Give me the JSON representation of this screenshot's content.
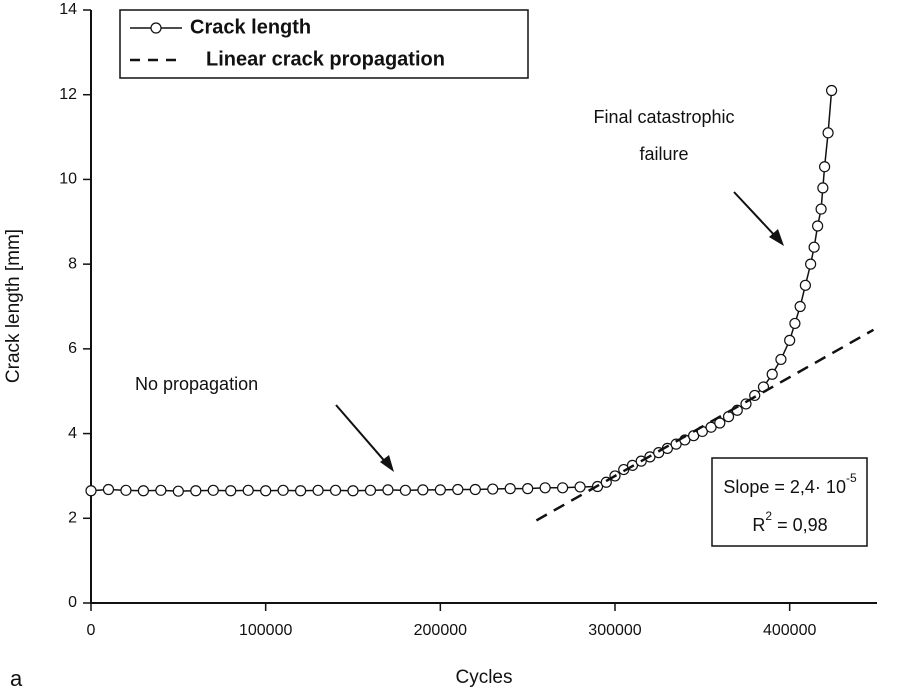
{
  "chart_data": {
    "type": "line",
    "xlabel": "Cycles",
    "ylabel": "Crack length [mm]",
    "panel_label": "a",
    "xlim": [
      0,
      450000
    ],
    "ylim": [
      0,
      14
    ],
    "xticks": [
      0,
      100000,
      200000,
      300000,
      400000
    ],
    "yticks": [
      0,
      2,
      4,
      6,
      8,
      10,
      12,
      14
    ],
    "legend": "upper left",
    "series": [
      {
        "name": "Crack length",
        "color": "#111111",
        "style": "line-circle",
        "x": [
          0,
          10000,
          20000,
          30000,
          40000,
          50000,
          60000,
          70000,
          80000,
          90000,
          100000,
          110000,
          120000,
          130000,
          140000,
          150000,
          160000,
          170000,
          180000,
          190000,
          200000,
          210000,
          220000,
          230000,
          240000,
          250000,
          260000,
          270000,
          280000,
          290000,
          295000,
          300000,
          305000,
          310000,
          315000,
          320000,
          325000,
          330000,
          335000,
          340000,
          345000,
          350000,
          355000,
          360000,
          365000,
          370000,
          375000,
          380000,
          385000,
          390000,
          395000,
          400000,
          403000,
          406000,
          409000,
          412000,
          414000,
          416000,
          418000,
          419000,
          420000,
          422000,
          424000
        ],
        "values": [
          2.65,
          2.68,
          2.66,
          2.65,
          2.66,
          2.64,
          2.65,
          2.66,
          2.65,
          2.66,
          2.65,
          2.66,
          2.65,
          2.66,
          2.66,
          2.65,
          2.66,
          2.67,
          2.66,
          2.67,
          2.67,
          2.68,
          2.68,
          2.69,
          2.7,
          2.7,
          2.72,
          2.72,
          2.74,
          2.75,
          2.85,
          3.0,
          3.15,
          3.25,
          3.35,
          3.45,
          3.55,
          3.65,
          3.75,
          3.85,
          3.95,
          4.05,
          4.15,
          4.25,
          4.4,
          4.55,
          4.7,
          4.9,
          5.1,
          5.4,
          5.75,
          6.2,
          6.6,
          7.0,
          7.5,
          8.0,
          8.4,
          8.9,
          9.3,
          9.8,
          10.3,
          11.1,
          12.1
        ]
      },
      {
        "name": "Linear crack propagation",
        "color": "#111111",
        "style": "dashed",
        "x": [
          255000,
          448000
        ],
        "values": [
          1.95,
          6.45
        ]
      }
    ],
    "annotations": [
      {
        "lines": [
          "No propagation"
        ]
      },
      {
        "lines": [
          "Final catastrophic",
          "failure"
        ]
      }
    ],
    "fit_box": {
      "slope": "Slope = 2,4· 10",
      "slope_exp": "-5",
      "r": "R",
      "r_exp": "2",
      "r_value": " = 0,98"
    }
  }
}
